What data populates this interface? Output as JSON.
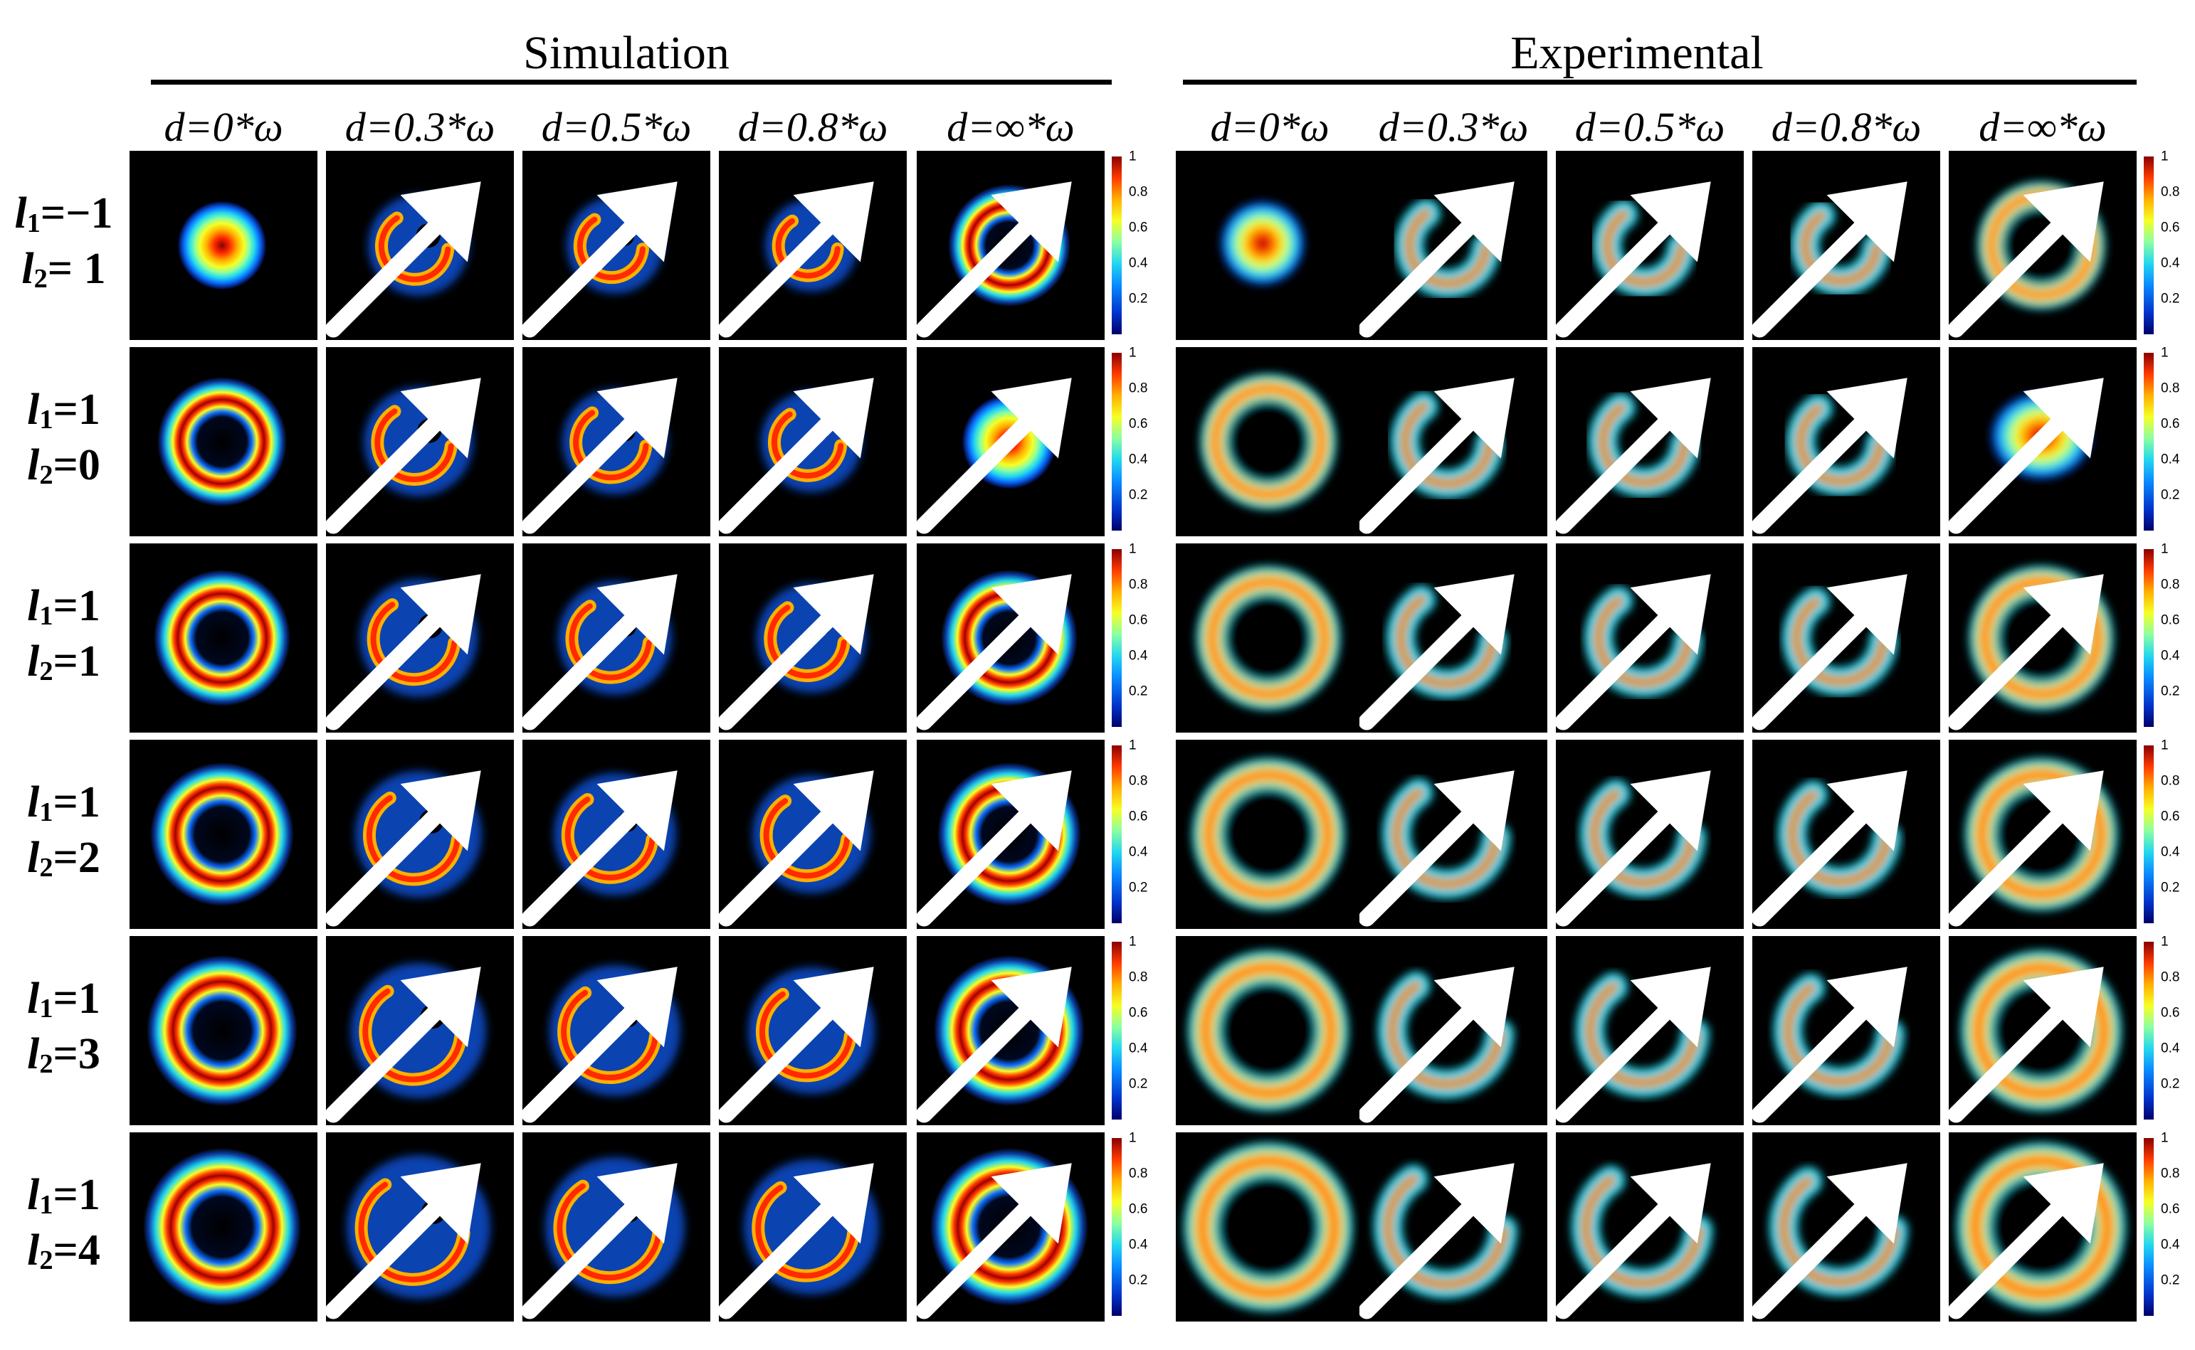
{
  "sections": {
    "simulation": "Simulation",
    "experimental": "Experimental"
  },
  "columns": [
    "d=0*ω",
    "d=0.3*ω",
    "d=0.5*ω",
    "d=0.8*ω",
    "d=∞*ω"
  ],
  "rows": [
    {
      "l1": "=−1",
      "l2": "= 1"
    },
    {
      "l1": "=1",
      "l2": "=0"
    },
    {
      "l1": "=1",
      "l2": "=1"
    },
    {
      "l1": "=1",
      "l2": "=2"
    },
    {
      "l1": "=1",
      "l2": "=3"
    },
    {
      "l1": "=1",
      "l2": "=4"
    }
  ],
  "colorbar": {
    "ticks": [
      "1",
      "0.8",
      "0.6",
      "0.4",
      "0.2"
    ],
    "colormap": "jet"
  },
  "arrow_icon": "arrow-up-right-icon"
}
